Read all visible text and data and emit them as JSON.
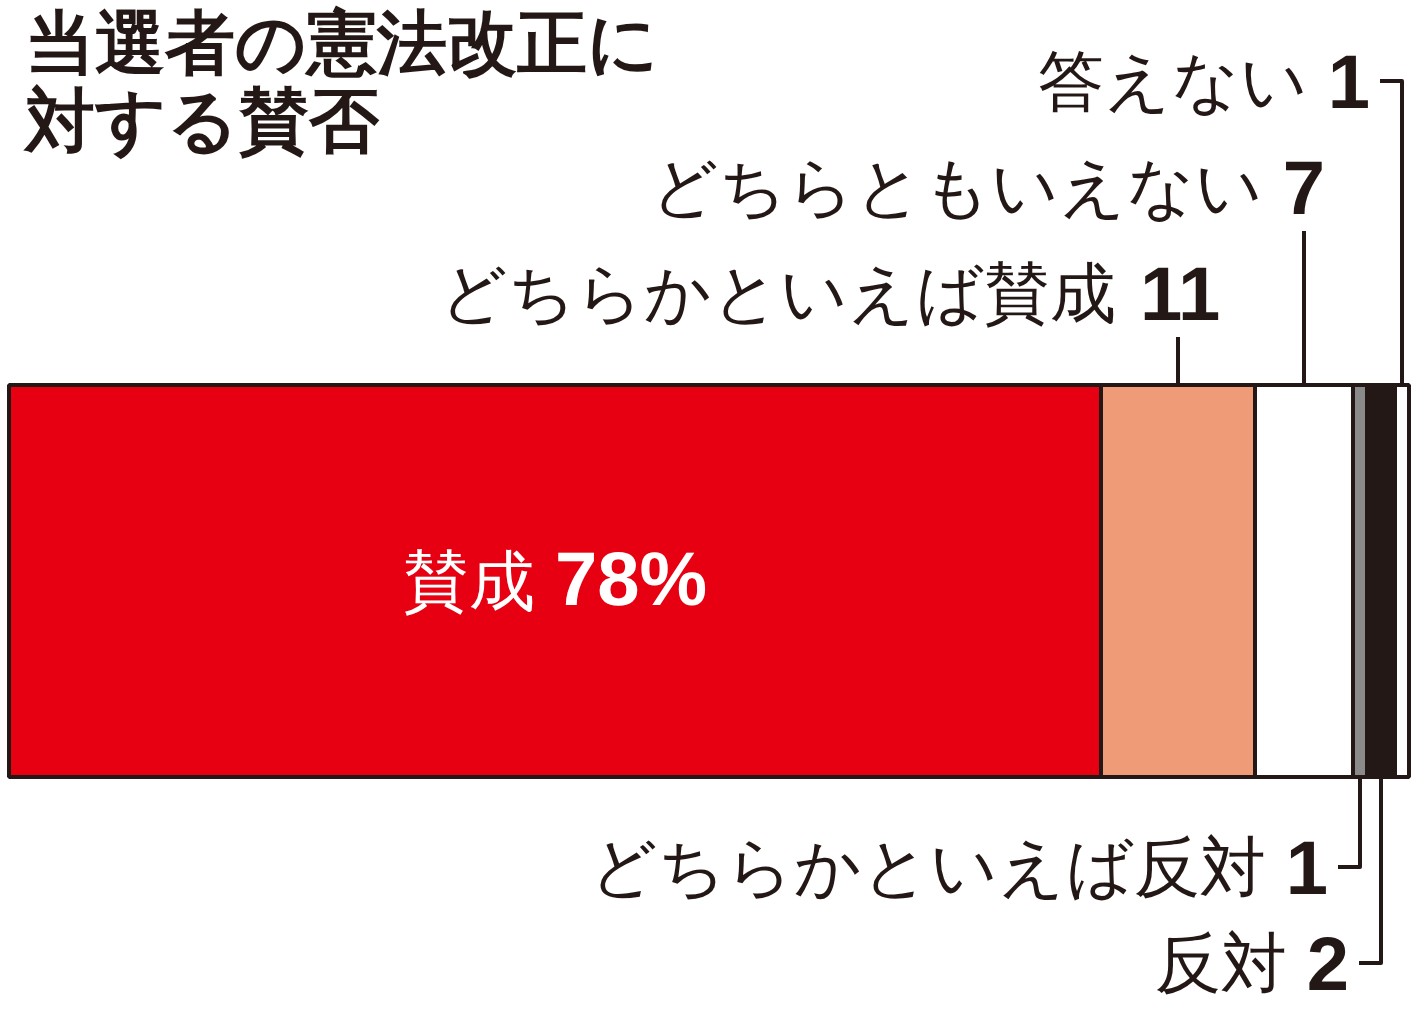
{
  "chart_data": {
    "type": "bar",
    "title": "当選者の憲法改正に対する賛否",
    "orientation": "horizontal",
    "stacked": true,
    "categories": [
      null
    ],
    "series": [
      {
        "name": "賛成",
        "color": "#e60012",
        "values": [
          78
        ],
        "value_labels": [
          "78%"
        ]
      },
      {
        "name": "どちらかといえば賛成",
        "color": "#f09b78",
        "values": [
          11
        ],
        "value_labels": [
          "11"
        ]
      },
      {
        "name": "どちらともいえない",
        "color": "#ffffff",
        "values": [
          7
        ],
        "value_labels": [
          "7"
        ]
      },
      {
        "name": "どちらかといえば反対",
        "color": "#8a8a8a",
        "values": [
          1
        ],
        "value_labels": [
          "1"
        ]
      },
      {
        "name": "反対",
        "color": "#231815",
        "values": [
          2
        ],
        "value_labels": [
          "2"
        ]
      },
      {
        "name": "答えない",
        "color": "#ffffff",
        "values": [
          1
        ],
        "value_labels": [
          "1"
        ]
      }
    ]
  }
}
